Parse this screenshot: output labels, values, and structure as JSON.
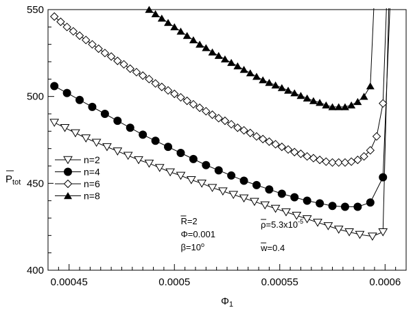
{
  "chart_data": {
    "type": "line",
    "xlabel": "Φ",
    "xlabel_sub": "1",
    "ylabel": "P",
    "ylabel_sub": "tot",
    "xlim": [
      0.00044,
      0.00061
    ],
    "ylim": [
      400,
      550
    ],
    "x_ticks": [
      0.00045,
      0.0005,
      0.00055,
      0.0006
    ],
    "x_tick_labels": [
      "0.00045",
      "0.0005",
      "0.00055",
      "0.0006"
    ],
    "y_ticks": [
      400,
      450,
      500,
      550
    ],
    "y_tick_labels": [
      "400",
      "450",
      "500",
      "550"
    ],
    "legend": "left-middle",
    "series": [
      {
        "name": "n=2",
        "marker": "triangle-down-open",
        "x": [
          0.000443,
          0.000448,
          0.000453,
          0.000458,
          0.000463,
          0.000468,
          0.000473,
          0.000478,
          0.000483,
          0.000488,
          0.000493,
          0.000498,
          0.000503,
          0.000508,
          0.000513,
          0.000518,
          0.000523,
          0.000528,
          0.000533,
          0.000538,
          0.000543,
          0.000548,
          0.000553,
          0.000558,
          0.000563,
          0.000568,
          0.000573,
          0.000578,
          0.000583,
          0.000588,
          0.000594,
          0.000599
        ],
        "y": [
          485,
          482,
          479,
          476,
          473.5,
          471,
          468.5,
          466,
          463.5,
          461.5,
          459,
          456.5,
          454.5,
          452,
          450,
          447.5,
          445.5,
          443.5,
          441.5,
          439.5,
          437.5,
          435.5,
          433.5,
          431.5,
          429.5,
          427.5,
          425.5,
          423.5,
          422,
          420.5,
          419.5,
          422
        ]
      },
      {
        "name": "n=4",
        "marker": "circle-filled",
        "x": [
          0.000443,
          0.000449,
          0.000455,
          0.000461,
          0.000467,
          0.000473,
          0.000479,
          0.000485,
          0.000491,
          0.000497,
          0.000503,
          0.000509,
          0.000515,
          0.000521,
          0.000527,
          0.000533,
          0.000539,
          0.000545,
          0.000551,
          0.000557,
          0.000563,
          0.000569,
          0.000575,
          0.000581,
          0.000587,
          0.000593,
          0.000599
        ],
        "y": [
          506,
          502,
          498,
          494,
          490,
          486,
          482,
          478,
          474.5,
          471,
          467.5,
          464,
          460.5,
          457.5,
          454.5,
          451.5,
          449,
          446.5,
          444,
          442,
          440,
          438.5,
          437,
          436.5,
          436.5,
          439,
          453.5
        ]
      },
      {
        "name": "n=6",
        "marker": "diamond-open",
        "x": [
          0.000443,
          0.000446,
          0.000449,
          0.000452,
          0.000455,
          0.000458,
          0.000461,
          0.000464,
          0.000467,
          0.00047,
          0.000473,
          0.000476,
          0.000479,
          0.000482,
          0.000485,
          0.000488,
          0.000491,
          0.000494,
          0.000497,
          0.0005,
          0.000503,
          0.000506,
          0.000509,
          0.000512,
          0.000515,
          0.000518,
          0.000521,
          0.000524,
          0.000527,
          0.00053,
          0.000533,
          0.000536,
          0.000539,
          0.000542,
          0.000545,
          0.000548,
          0.000551,
          0.000554,
          0.000557,
          0.00056,
          0.000563,
          0.000566,
          0.000569,
          0.000572,
          0.000575,
          0.000578,
          0.000581,
          0.000584,
          0.000587,
          0.00059,
          0.000593,
          0.000596,
          0.000599
        ],
        "y": [
          546,
          543,
          540,
          537.5,
          535,
          532.5,
          530,
          527.5,
          525,
          523,
          520.5,
          518.5,
          516,
          514,
          512,
          510,
          507.5,
          505.5,
          503.5,
          501.5,
          499.5,
          497.5,
          495.5,
          493.5,
          491.5,
          489.5,
          487.5,
          486,
          484,
          482,
          480.5,
          479,
          477,
          475.5,
          474,
          472.5,
          471,
          469.5,
          468,
          467,
          465.5,
          464.5,
          463.5,
          462.5,
          462,
          462,
          462,
          462.5,
          463.5,
          465.5,
          469,
          477,
          496
        ]
      },
      {
        "name": "n=8",
        "marker": "triangle-up-filled",
        "x": [
          0.000488,
          0.000491,
          0.000494,
          0.000497,
          0.0005,
          0.000503,
          0.000506,
          0.000509,
          0.000512,
          0.000515,
          0.000518,
          0.000521,
          0.000524,
          0.000527,
          0.00053,
          0.000533,
          0.000536,
          0.000539,
          0.000542,
          0.000545,
          0.000548,
          0.000551,
          0.000554,
          0.000557,
          0.00056,
          0.000563,
          0.000566,
          0.000569,
          0.000572,
          0.000575,
          0.000578,
          0.000581,
          0.000584,
          0.000587,
          0.00059,
          0.000593
        ],
        "y": [
          550,
          547.5,
          545,
          542.5,
          540,
          537.5,
          535,
          532.5,
          530,
          528,
          525.5,
          523.5,
          521.5,
          519.5,
          517.5,
          515.5,
          513.5,
          511.5,
          509.5,
          508,
          506.5,
          505,
          503.5,
          502,
          500.5,
          499,
          497.5,
          496.5,
          495,
          494,
          494,
          494,
          495,
          497,
          500,
          506
        ]
      }
    ],
    "annotations": [
      {
        "text": "R=2",
        "overbar": "R",
        "x": 0.000503,
        "y": 426.5
      },
      {
        "text": "Φ=0.001",
        "x": 0.000503,
        "y": 419
      },
      {
        "text": "β=10°",
        "x": 0.000503,
        "y": 411.5
      },
      {
        "text": "ρ=5.3x10-5",
        "overbar": "ρ",
        "x": 0.000541,
        "y": 424.5
      },
      {
        "text": "w=0.4",
        "overbar": "w",
        "x": 0.000541,
        "y": 411
      }
    ]
  }
}
